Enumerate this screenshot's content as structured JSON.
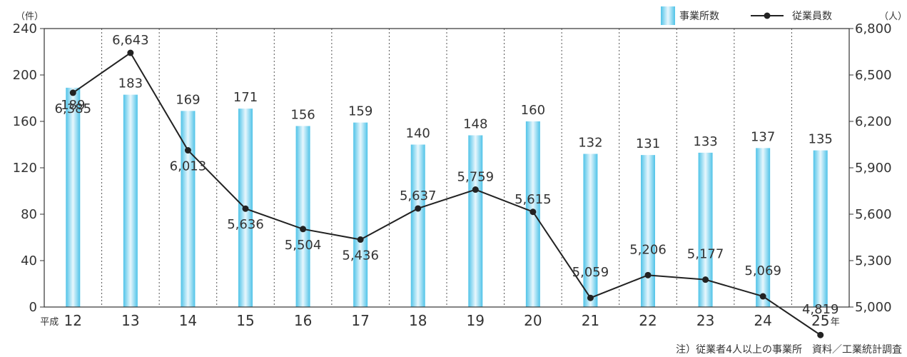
{
  "chart_data": {
    "type": "bar",
    "x_prefix": "平成",
    "x_suffix": "年",
    "categories": [
      "12",
      "13",
      "14",
      "15",
      "16",
      "17",
      "18",
      "19",
      "20",
      "21",
      "22",
      "23",
      "24",
      "25"
    ],
    "series": [
      {
        "name": "事業所数",
        "type": "bar",
        "axis": "left",
        "values": [
          189,
          183,
          169,
          171,
          156,
          159,
          140,
          148,
          160,
          132,
          131,
          133,
          137,
          135
        ],
        "labels": [
          "189",
          "183",
          "169",
          "171",
          "156",
          "159",
          "140",
          "148",
          "160",
          "132",
          "131",
          "133",
          "137",
          "135"
        ]
      },
      {
        "name": "従業員数",
        "type": "line",
        "axis": "right",
        "values": [
          6385,
          6643,
          6013,
          5636,
          5504,
          5436,
          5637,
          5759,
          5615,
          5059,
          5206,
          5177,
          5069,
          4819
        ],
        "labels": [
          "6,385",
          "6,643",
          "6,013",
          "5,636",
          "5,504",
          "5,436",
          "5,637",
          "5,759",
          "5,615",
          "5,059",
          "5,206",
          "5,177",
          "5,069",
          "4,819"
        ]
      }
    ],
    "y_left": {
      "unit": "（件）",
      "range": [
        0,
        240
      ],
      "ticks": [
        "0",
        "40",
        "80",
        "120",
        "160",
        "200",
        "240"
      ]
    },
    "y_right": {
      "unit": "（人）",
      "range": [
        5000,
        6800
      ],
      "ticks": [
        "5,000",
        "5,300",
        "5,600",
        "5,900",
        "6,200",
        "6,500",
        "6,800"
      ]
    },
    "legend_position": "top-right",
    "grid": "vertical-dotted",
    "colors": {
      "bar_edge": "#4fc3e8",
      "bar_mid": "#e8f7fd",
      "line": "#222222",
      "axis": "#333333"
    },
    "note": "注）従業者4人以上の事業所　資料／工業統計調査"
  }
}
